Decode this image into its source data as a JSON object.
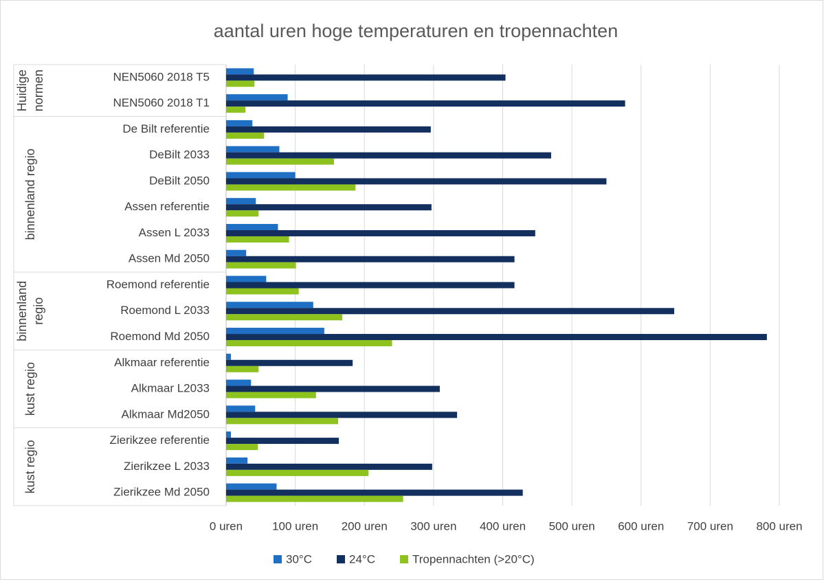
{
  "chart_data": {
    "type": "bar",
    "orientation": "horizontal",
    "title": "aantal uren hoge temperaturen en tropennachten",
    "groups": [
      {
        "label": [
          "Huidige",
          "normen"
        ],
        "categories": [
          "NEN5060 2018 T5",
          "NEN5060 2018 T1"
        ]
      },
      {
        "label": [
          "binnenland regio"
        ],
        "categories": [
          "De Bilt referentie",
          "DeBilt 2033",
          "DeBilt 2050",
          "Assen referentie",
          "Assen L 2033",
          "Assen Md 2050"
        ]
      },
      {
        "label": [
          "binnenland",
          "regio"
        ],
        "categories": [
          "Roemond referentie",
          "Roemond L 2033",
          "Roemond Md 2050"
        ]
      },
      {
        "label": [
          "kust regio"
        ],
        "categories": [
          "Alkmaar referentie",
          "Alkmaar L2033",
          "Alkmaar Md2050"
        ]
      },
      {
        "label": [
          "kust regio"
        ],
        "categories": [
          "Zierikzee referentie",
          "Zierikzee L 2033",
          "Zierikzee Md 2050"
        ]
      }
    ],
    "series": [
      {
        "name": "30°C",
        "color": "#1f6fc5",
        "values": [
          40,
          89,
          38,
          77,
          100,
          43,
          75,
          29,
          58,
          126,
          142,
          7,
          36,
          42,
          7,
          31,
          73
        ]
      },
      {
        "name": "24°C",
        "color": "#132f5e",
        "values": [
          404,
          577,
          296,
          470,
          550,
          297,
          447,
          417,
          417,
          648,
          782,
          183,
          309,
          334,
          163,
          298,
          429
        ]
      },
      {
        "name": "Tropennachten (>20°C)",
        "color": "#8dc21f",
        "values": [
          41,
          28,
          55,
          156,
          187,
          47,
          91,
          101,
          105,
          168,
          240,
          47,
          130,
          162,
          46,
          206,
          256
        ]
      }
    ],
    "xlim": [
      0,
      800
    ],
    "xticks": [
      {
        "value": 0,
        "label": "0 uren"
      },
      {
        "value": 100,
        "label": "100 uren"
      },
      {
        "value": 200,
        "label": "200 uren"
      },
      {
        "value": 300,
        "label": "300 uren"
      },
      {
        "value": 400,
        "label": "400 uren"
      },
      {
        "value": 500,
        "label": "500 uren"
      },
      {
        "value": 600,
        "label": "600 uren"
      },
      {
        "value": 700,
        "label": "700 uren"
      },
      {
        "value": 800,
        "label": "800 uren"
      }
    ],
    "grid": true,
    "legend": "bottom"
  }
}
